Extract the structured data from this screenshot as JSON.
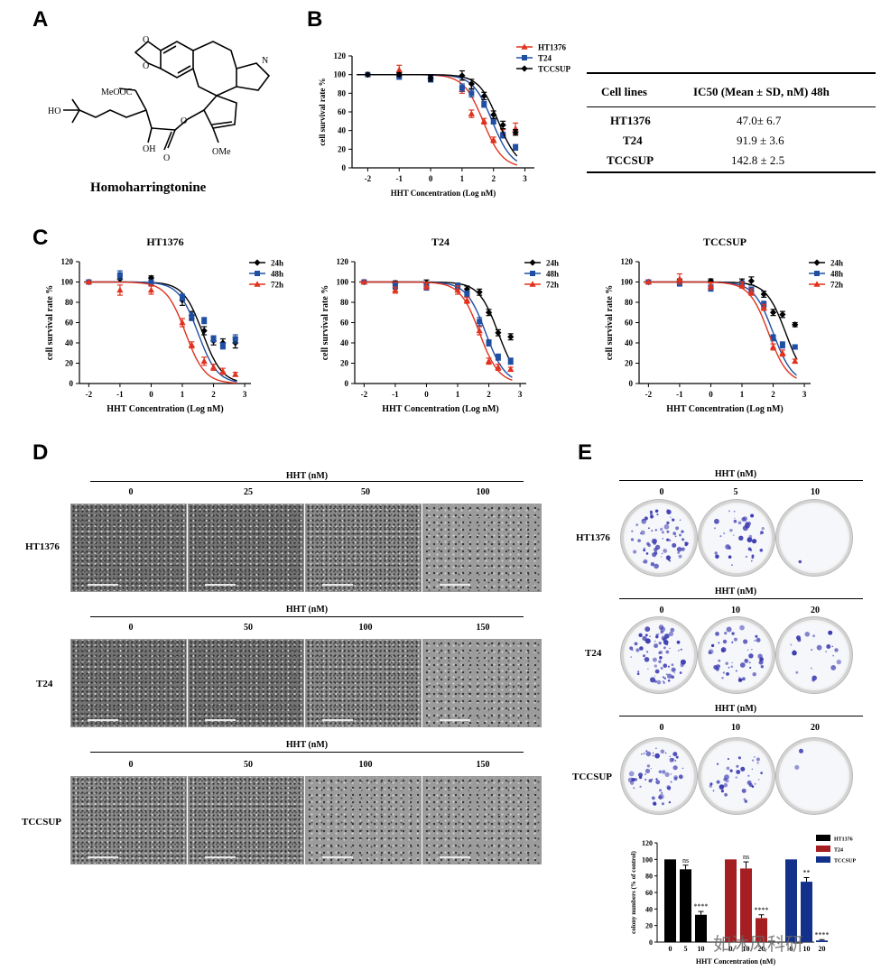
{
  "panels": {
    "A": "A",
    "B": "B",
    "C": "C",
    "D": "D",
    "E": "E"
  },
  "panel_a": {
    "compound_name": "Homoharringtonine",
    "labels": {
      "ho": "HO",
      "oh": "OH",
      "meooc": "MeOOC",
      "ome": "OMe",
      "n": "N",
      "o": "O"
    }
  },
  "panel_b_table": {
    "headers": [
      "Cell lines",
      "IC50 (Mean ± SD, nM) 48h"
    ],
    "rows": [
      {
        "cell": "HT1376",
        "ic50": "47.0± 6.7"
      },
      {
        "cell": "T24",
        "ic50": "91.9 ± 3.6"
      },
      {
        "cell": "TCCSUP",
        "ic50": "142.8 ± 2.5"
      }
    ]
  },
  "colors": {
    "black": "#000000",
    "blue": "#1f4fa3",
    "red": "#e0321e",
    "bar_black": "#000000",
    "bar_red": "#a41e22",
    "bar_blue": "#13318a",
    "dish_stain": "#3b3bb0"
  },
  "chart_data": [
    {
      "id": "B",
      "type": "scatter",
      "title": "",
      "xlabel": "HHT Concentration (Log nM)",
      "ylabel": "cell survival rate %",
      "xlim": [
        -2.5,
        3.3
      ],
      "ylim": [
        0,
        120
      ],
      "xticks": [
        "-2",
        "-1",
        "0",
        "1",
        "2",
        "3"
      ],
      "yticks": [
        "0",
        "20",
        "40",
        "60",
        "80",
        "100",
        "120"
      ],
      "legend_position": "top-right",
      "series": [
        {
          "name": "HT1376",
          "color": "red",
          "marker": "triangle",
          "x": [
            -2,
            -1,
            0,
            1,
            1.3,
            1.7,
            2,
            2.3,
            2.7
          ],
          "y": [
            100,
            105,
            97,
            84,
            58,
            50,
            30,
            38,
            42
          ],
          "err": [
            0,
            5,
            3,
            4,
            4,
            3,
            3,
            3,
            6
          ],
          "ic50": 1.67
        },
        {
          "name": "T24",
          "color": "blue",
          "marker": "square",
          "x": [
            -2,
            -1,
            0,
            1,
            1.3,
            1.7,
            2,
            2.3,
            2.7
          ],
          "y": [
            100,
            98,
            96,
            86,
            80,
            68,
            50,
            35,
            22
          ],
          "err": [
            0,
            3,
            4,
            4,
            4,
            3,
            3,
            3,
            3
          ],
          "ic50": 1.96
        },
        {
          "name": "TCCSUP",
          "color": "black",
          "marker": "diamond",
          "x": [
            -2,
            -1,
            0,
            1,
            1.3,
            1.7,
            2,
            2.3,
            2.7
          ],
          "y": [
            100,
            100,
            96,
            99,
            90,
            77,
            57,
            46,
            38
          ],
          "err": [
            0,
            2,
            3,
            5,
            5,
            4,
            4,
            4,
            3
          ],
          "ic50": 2.15
        }
      ]
    },
    {
      "id": "C1",
      "type": "scatter",
      "title": "HT1376",
      "xlabel": "HHT Concentration (Log nM)",
      "ylabel": "cell survival rate %",
      "xlim": [
        -2.3,
        3.2
      ],
      "ylim": [
        0,
        120
      ],
      "xticks": [
        "-2",
        "-1",
        "0",
        "1",
        "2",
        "3"
      ],
      "yticks": [
        "0",
        "20",
        "40",
        "60",
        "80",
        "100",
        "120"
      ],
      "legend_position": "top-right",
      "series": [
        {
          "name": "24h",
          "color": "black",
          "marker": "diamond",
          "x": [
            -2,
            -1,
            0,
            1,
            1.3,
            1.7,
            2,
            2.3,
            2.7
          ],
          "y": [
            100,
            103,
            104,
            82,
            67,
            52,
            42,
            40,
            40
          ],
          "err": [
            0,
            3,
            2,
            5,
            4,
            4,
            4,
            4,
            5
          ],
          "ic50": 1.65
        },
        {
          "name": "48h",
          "color": "blue",
          "marker": "square",
          "x": [
            -2,
            -1,
            0,
            1,
            1.3,
            1.7,
            2,
            2.3,
            2.7
          ],
          "y": [
            100,
            107,
            99,
            85,
            66,
            62,
            44,
            37,
            44
          ],
          "err": [
            0,
            4,
            3,
            3,
            4,
            3,
            3,
            3,
            4
          ],
          "ic50": 1.5
        },
        {
          "name": "72h",
          "color": "red",
          "marker": "triangle",
          "x": [
            -2,
            -1,
            0,
            1,
            1.3,
            1.7,
            2,
            2.3,
            2.7
          ],
          "y": [
            100,
            92,
            92,
            60,
            38,
            22,
            16,
            12,
            9
          ],
          "err": [
            0,
            5,
            4,
            4,
            3,
            4,
            3,
            3,
            2
          ],
          "ic50": 1.1
        }
      ]
    },
    {
      "id": "C2",
      "type": "scatter",
      "title": "T24",
      "xlabel": "HHT Concentration (Log nM)",
      "ylabel": "cell survival rate %",
      "xlim": [
        -2.3,
        3.2
      ],
      "ylim": [
        0,
        120
      ],
      "xticks": [
        "-2",
        "-1",
        "0",
        "1",
        "2",
        "3"
      ],
      "yticks": [
        "0",
        "20",
        "40",
        "60",
        "80",
        "100",
        "120"
      ],
      "legend_position": "top-right",
      "series": [
        {
          "name": "24h",
          "color": "black",
          "marker": "diamond",
          "x": [
            -2,
            -1,
            0,
            1,
            1.3,
            1.7,
            2,
            2.3,
            2.7
          ],
          "y": [
            100,
            99,
            99,
            96,
            93,
            90,
            70,
            50,
            46
          ],
          "err": [
            0,
            2,
            3,
            3,
            3,
            3,
            3,
            3,
            3
          ],
          "ic50": 2.3
        },
        {
          "name": "48h",
          "color": "blue",
          "marker": "square",
          "x": [
            -2,
            -1,
            0,
            1,
            1.3,
            1.7,
            2,
            2.3,
            2.7
          ],
          "y": [
            100,
            96,
            95,
            96,
            88,
            61,
            40,
            26,
            22
          ],
          "err": [
            0,
            3,
            3,
            3,
            3,
            4,
            3,
            3,
            3
          ],
          "ic50": 1.9
        },
        {
          "name": "72h",
          "color": "red",
          "marker": "triangle",
          "x": [
            -2,
            -1,
            0,
            1,
            1.3,
            1.7,
            2,
            2.3,
            2.7
          ],
          "y": [
            100,
            92,
            96,
            92,
            82,
            52,
            22,
            16,
            14
          ],
          "err": [
            0,
            3,
            3,
            4,
            3,
            4,
            3,
            3,
            2
          ],
          "ic50": 1.7
        }
      ]
    },
    {
      "id": "C3",
      "type": "scatter",
      "title": "TCCSUP",
      "xlabel": "HHT Concentration (Log nM)",
      "ylabel": "cell survival rate %",
      "xlim": [
        -2.3,
        3.2
      ],
      "ylim": [
        0,
        120
      ],
      "xticks": [
        "-2",
        "-1",
        "0",
        "1",
        "2",
        "3"
      ],
      "yticks": [
        "0",
        "20",
        "40",
        "60",
        "80",
        "100",
        "120"
      ],
      "legend_position": "top-right",
      "series": [
        {
          "name": "24h",
          "color": "black",
          "marker": "diamond",
          "x": [
            -2,
            -1,
            0,
            1,
            1.3,
            1.7,
            2,
            2.3,
            2.7
          ],
          "y": [
            100,
            101,
            101,
            100,
            101,
            88,
            70,
            68,
            58
          ],
          "err": [
            0,
            2,
            2,
            3,
            4,
            3,
            3,
            3,
            2
          ],
          "ic50": 2.4
        },
        {
          "name": "48h",
          "color": "blue",
          "marker": "square",
          "x": [
            -2,
            -1,
            0,
            1,
            1.3,
            1.7,
            2,
            2.3,
            2.7
          ],
          "y": [
            100,
            99,
            94,
            98,
            92,
            78,
            45,
            38,
            36
          ],
          "err": [
            0,
            3,
            3,
            3,
            3,
            3,
            3,
            3,
            2
          ],
          "ic50": 2.0
        },
        {
          "name": "72h",
          "color": "red",
          "marker": "triangle",
          "x": [
            -2,
            -1,
            0,
            1,
            1.3,
            1.7,
            2,
            2.3,
            2.7
          ],
          "y": [
            100,
            103,
            96,
            97,
            90,
            75,
            36,
            30,
            22
          ],
          "err": [
            0,
            5,
            3,
            3,
            3,
            3,
            3,
            3,
            2
          ],
          "ic50": 1.85
        }
      ]
    },
    {
      "id": "E_bar",
      "type": "bar",
      "xlabel": "HHT Concentration (nM)",
      "ylabel": "colony numbers (% of control)",
      "ylim": [
        0,
        120
      ],
      "yticks": [
        "0",
        "20",
        "40",
        "60",
        "80",
        "100",
        "120"
      ],
      "legend_position": "top-right",
      "groups": [
        {
          "name": "HT1376",
          "color": "bar_black",
          "categories": [
            "0",
            "5",
            "10"
          ],
          "values": [
            100,
            88,
            33
          ],
          "err": [
            0,
            5,
            4
          ],
          "sig": [
            "",
            "ns",
            "****"
          ]
        },
        {
          "name": "T24",
          "color": "bar_red",
          "categories": [
            "0",
            "10",
            "20"
          ],
          "values": [
            100,
            89,
            29
          ],
          "err": [
            0,
            8,
            4
          ],
          "sig": [
            "",
            "ns",
            "****"
          ]
        },
        {
          "name": "TCCSUP",
          "color": "bar_blue",
          "categories": [
            "0",
            "10",
            "20"
          ],
          "values": [
            100,
            73,
            2
          ],
          "err": [
            0,
            5,
            1
          ],
          "sig": [
            "",
            "**",
            "****"
          ]
        }
      ]
    }
  ],
  "panel_d": {
    "header": "HHT (nM)",
    "rows": [
      {
        "cell": "HT1376",
        "doses": [
          "0",
          "25",
          "50",
          "100"
        ]
      },
      {
        "cell": "T24",
        "doses": [
          "0",
          "50",
          "100",
          "150"
        ]
      },
      {
        "cell": "TCCSUP",
        "doses": [
          "0",
          "50",
          "100",
          "150"
        ]
      }
    ]
  },
  "panel_e": {
    "header": "HHT (nM)",
    "rows": [
      {
        "cell": "HT1376",
        "doses": [
          "0",
          "5",
          "10"
        ]
      },
      {
        "cell": "T24",
        "doses": [
          "0",
          "10",
          "20"
        ]
      },
      {
        "cell": "TCCSUP",
        "doses": [
          "0",
          "10",
          "20"
        ]
      }
    ]
  },
  "watermark": "如沐风科研"
}
